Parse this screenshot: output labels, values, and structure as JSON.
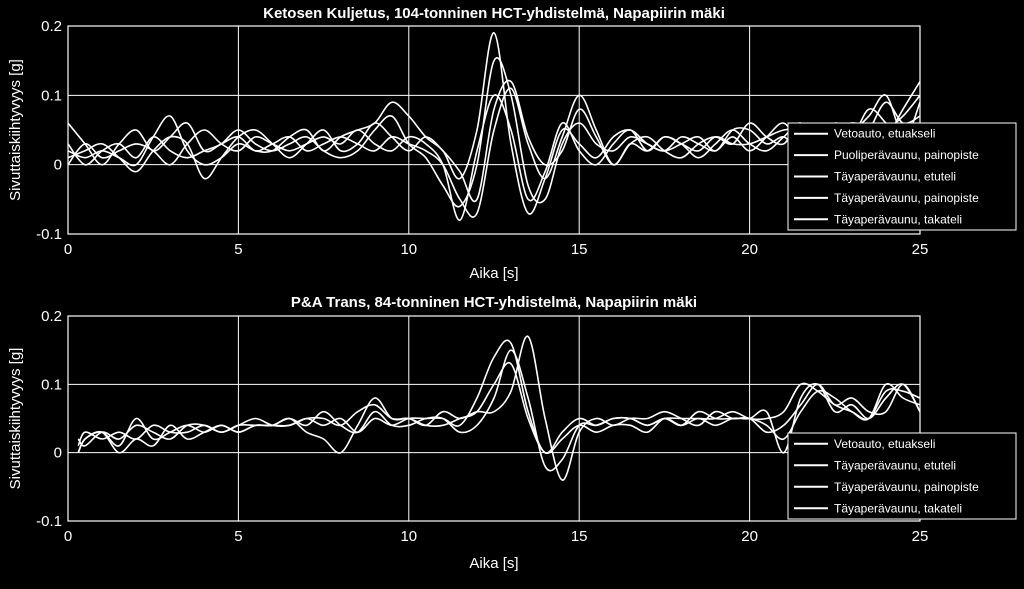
{
  "chart_data": [
    {
      "type": "line",
      "title": "Ketosen Kuljetus, 104-tonninen HCT-yhdistelmä, Napapiirin mäki",
      "xlabel": "Aika [s]",
      "ylabel": "Sivuttaiskiihtyvyys [g]",
      "xlim": [
        0,
        25
      ],
      "ylim": [
        -0.1,
        0.2
      ],
      "xticks": [
        "0",
        "5",
        "10",
        "15",
        "20",
        "25"
      ],
      "yticks": [
        "-0.1",
        "0",
        "0.1",
        "0.2"
      ],
      "grid": true,
      "legend_position": "right",
      "line_color": "#ffffff",
      "series": [
        {
          "name": "Vetoauto, etuakseli",
          "x": [
            0,
            0.5,
            1,
            1.5,
            2,
            2.5,
            3,
            3.5,
            4,
            4.5,
            5,
            5.5,
            6,
            6.5,
            7,
            7.5,
            8,
            8.5,
            9,
            9.5,
            10,
            10.5,
            11,
            11.5,
            12,
            12.5,
            13,
            13.5,
            14,
            14.5,
            15,
            15.5,
            16,
            16.5,
            17,
            17.5,
            18,
            18.5,
            19,
            19.5,
            20,
            20.5,
            21,
            21.5,
            22,
            22.5,
            23,
            23.5,
            24,
            24.5,
            25
          ],
          "y": [
            0.06,
            0.03,
            0.0,
            0.03,
            0.05,
            0.02,
            0.04,
            0.06,
            0.02,
            0.03,
            0.04,
            0.02,
            0.03,
            0.04,
            0.02,
            0.03,
            0.04,
            0.03,
            0.02,
            0.04,
            0.03,
            0.02,
            0.0,
            -0.05,
            -0.07,
            0.05,
            0.11,
            0.03,
            -0.02,
            0.04,
            0.1,
            0.05,
            0.0,
            0.03,
            0.02,
            0.04,
            0.03,
            0.02,
            0.04,
            0.03,
            0.03,
            0.04,
            0.05,
            0.05,
            0.04,
            0.06,
            0.05,
            0.07,
            0.1,
            0.04,
            0.05
          ]
        },
        {
          "name": "Puoliperävaunu, painopiste",
          "x": [
            0,
            0.5,
            1,
            1.5,
            2,
            2.5,
            3,
            3.5,
            4,
            4.5,
            5,
            5.5,
            6,
            6.5,
            7,
            7.5,
            8,
            8.5,
            9,
            9.5,
            10,
            10.5,
            11,
            11.5,
            12,
            12.5,
            13,
            13.5,
            14,
            14.5,
            15,
            15.5,
            16,
            16.5,
            17,
            17.5,
            18,
            18.5,
            19,
            19.5,
            20,
            20.5,
            21,
            21.5,
            22,
            22.5,
            23,
            23.5,
            24,
            24.5,
            25
          ],
          "y": [
            0.02,
            0.01,
            0.02,
            0.01,
            0.0,
            0.04,
            0.07,
            0.02,
            0.0,
            0.01,
            0.03,
            0.02,
            0.02,
            0.04,
            0.05,
            0.02,
            0.04,
            0.05,
            0.06,
            0.09,
            0.07,
            0.04,
            0.02,
            -0.02,
            0.05,
            0.19,
            0.03,
            -0.07,
            -0.02,
            0.05,
            0.03,
            0.01,
            0.04,
            0.05,
            0.03,
            0.02,
            0.03,
            0.04,
            0.02,
            0.05,
            0.05,
            0.03,
            0.04,
            0.02,
            0.05,
            0.04,
            0.06,
            0.05,
            0.04,
            0.08,
            0.12
          ]
        },
        {
          "name": "Täyaperävaunu, etuteli",
          "x": [
            0,
            0.5,
            1,
            1.5,
            2,
            2.5,
            3,
            3.5,
            4,
            4.5,
            5,
            5.5,
            6,
            6.5,
            7,
            7.5,
            8,
            8.5,
            9,
            9.5,
            10,
            10.5,
            11,
            11.5,
            12,
            12.5,
            13,
            13.5,
            14,
            14.5,
            15,
            15.5,
            16,
            16.5,
            17,
            17.5,
            18,
            18.5,
            19,
            19.5,
            20,
            20.5,
            21,
            21.5,
            22,
            22.5,
            23,
            23.5,
            24,
            24.5,
            25
          ],
          "y": [
            0.01,
            0.02,
            0.03,
            0.01,
            -0.01,
            0.02,
            0.04,
            0.03,
            -0.02,
            0.01,
            0.04,
            0.05,
            0.03,
            0.01,
            0.03,
            0.05,
            0.02,
            0.03,
            0.06,
            0.04,
            0.02,
            0.04,
            0.02,
            -0.01,
            -0.05,
            0.08,
            0.12,
            0.04,
            0.0,
            0.02,
            0.08,
            0.04,
            0.0,
            0.03,
            0.04,
            0.02,
            0.01,
            0.03,
            0.04,
            0.03,
            0.06,
            0.04,
            0.03,
            0.06,
            0.02,
            0.05,
            0.04,
            0.08,
            0.06,
            0.03,
            0.09
          ]
        },
        {
          "name": "Täyaperävaunu, painopiste",
          "x": [
            0,
            0.5,
            1,
            1.5,
            2,
            2.5,
            3,
            3.5,
            4,
            4.5,
            5,
            5.5,
            6,
            6.5,
            7,
            7.5,
            8,
            8.5,
            9,
            9.5,
            10,
            10.5,
            11,
            11.5,
            12,
            12.5,
            13,
            13.5,
            14,
            14.5,
            15,
            15.5,
            16,
            16.5,
            17,
            17.5,
            18,
            18.5,
            19,
            19.5,
            20,
            20.5,
            21,
            21.5,
            22,
            22.5,
            23,
            23.5,
            24,
            24.5,
            25
          ],
          "y": [
            0.03,
            0.0,
            0.02,
            0.03,
            0.01,
            0.04,
            0.02,
            0.01,
            0.02,
            0.03,
            0.05,
            0.03,
            0.02,
            0.03,
            0.04,
            0.02,
            0.01,
            0.02,
            0.05,
            0.07,
            0.03,
            0.01,
            -0.03,
            -0.06,
            0.0,
            0.15,
            0.1,
            -0.03,
            -0.05,
            0.03,
            0.06,
            0.03,
            0.02,
            0.04,
            0.03,
            0.02,
            0.04,
            0.03,
            0.02,
            0.04,
            0.02,
            0.04,
            0.06,
            0.03,
            0.04,
            0.05,
            0.03,
            0.05,
            0.09,
            0.06,
            0.07
          ]
        },
        {
          "name": "Täyaperävaunu, takateli",
          "x": [
            0,
            0.5,
            1,
            1.5,
            2,
            2.5,
            3,
            3.5,
            4,
            4.5,
            5,
            5.5,
            6,
            6.5,
            7,
            7.5,
            8,
            8.5,
            9,
            9.5,
            10,
            10.5,
            11,
            11.5,
            12,
            12.5,
            13,
            13.5,
            14,
            14.5,
            15,
            15.5,
            16,
            16.5,
            17,
            17.5,
            18,
            18.5,
            19,
            19.5,
            20,
            20.5,
            21,
            21.5,
            22,
            22.5,
            23,
            23.5,
            24,
            24.5,
            25
          ],
          "y": [
            0.0,
            0.03,
            0.01,
            0.02,
            0.03,
            0.02,
            0.0,
            0.03,
            0.05,
            0.03,
            0.02,
            0.04,
            0.03,
            0.02,
            0.03,
            0.04,
            0.03,
            0.05,
            0.03,
            0.02,
            0.04,
            0.03,
            0.0,
            -0.08,
            0.02,
            0.1,
            0.05,
            -0.05,
            -0.01,
            0.06,
            0.02,
            0.0,
            0.03,
            0.05,
            0.02,
            0.04,
            0.03,
            0.01,
            0.03,
            0.05,
            0.03,
            0.02,
            0.04,
            0.06,
            0.03,
            0.04,
            0.06,
            0.04,
            0.05,
            0.07,
            0.1
          ]
        }
      ]
    },
    {
      "type": "line",
      "title": "P&A Trans, 84-tonninen HCT-yhdistelmä, Napapiirin mäki",
      "xlabel": "Aika [s]",
      "ylabel": "Sivuttaiskiihtyvyys [g]",
      "xlim": [
        0,
        25
      ],
      "ylim": [
        -0.1,
        0.2
      ],
      "xticks": [
        "0",
        "5",
        "10",
        "15",
        "20",
        "25"
      ],
      "yticks": [
        "-0.1",
        "0",
        "0.1",
        "0.2"
      ],
      "grid": true,
      "legend_position": "right",
      "line_color": "#ffffff",
      "series": [
        {
          "name": "Vetoauto, etuakseli",
          "x": [
            0.3,
            0.5,
            1,
            1.5,
            2,
            2.5,
            3,
            3.5,
            4,
            4.5,
            5,
            5.5,
            6,
            6.5,
            7,
            7.5,
            8,
            8.5,
            9,
            9.5,
            10,
            10.5,
            11,
            11.5,
            12,
            12.5,
            13,
            13.5,
            14,
            14.5,
            15,
            15.5,
            16,
            16.5,
            17,
            17.5,
            18,
            18.5,
            19,
            19.5,
            20,
            20.5,
            21,
            21.5,
            22,
            22.5,
            23,
            23.5,
            24,
            24.5,
            25
          ],
          "y": [
            0.0,
            0.02,
            0.03,
            0.01,
            0.05,
            0.02,
            0.03,
            0.04,
            0.03,
            0.04,
            0.03,
            0.04,
            0.04,
            0.05,
            0.03,
            0.02,
            0.0,
            0.04,
            0.08,
            0.05,
            0.05,
            0.04,
            0.04,
            0.05,
            0.06,
            0.1,
            0.13,
            0.05,
            0.0,
            0.02,
            0.04,
            0.03,
            0.04,
            0.04,
            0.03,
            0.05,
            0.04,
            0.05,
            0.04,
            0.05,
            0.05,
            0.06,
            0.0,
            0.08,
            0.1,
            0.06,
            0.07,
            0.05,
            0.08,
            0.1,
            0.06
          ]
        },
        {
          "name": "Täyaperävaunu, etuteli",
          "x": [
            0.3,
            0.5,
            1,
            1.5,
            2,
            2.5,
            3,
            3.5,
            4,
            4.5,
            5,
            5.5,
            6,
            6.5,
            7,
            7.5,
            8,
            8.5,
            9,
            9.5,
            10,
            10.5,
            11,
            11.5,
            12,
            12.5,
            13,
            13.5,
            14,
            14.5,
            15,
            15.5,
            16,
            16.5,
            17,
            17.5,
            18,
            18.5,
            19,
            19.5,
            20,
            20.5,
            21,
            21.5,
            22,
            22.5,
            23,
            23.5,
            24,
            24.5,
            25
          ],
          "y": [
            0.01,
            0.03,
            0.02,
            0.03,
            0.02,
            0.04,
            0.03,
            0.03,
            0.04,
            0.03,
            0.04,
            0.04,
            0.04,
            0.04,
            0.05,
            0.04,
            0.05,
            0.03,
            0.05,
            0.04,
            0.05,
            0.05,
            0.05,
            0.04,
            0.08,
            0.14,
            0.16,
            0.06,
            0.0,
            0.03,
            0.05,
            0.04,
            0.05,
            0.05,
            0.04,
            0.05,
            0.05,
            0.05,
            0.05,
            0.06,
            0.05,
            0.05,
            0.06,
            0.1,
            0.09,
            0.07,
            0.06,
            0.05,
            0.09,
            0.09,
            0.08
          ]
        },
        {
          "name": "Täyaperävaunu, painopiste",
          "x": [
            0.3,
            0.5,
            1,
            1.5,
            2,
            2.5,
            3,
            3.5,
            4,
            4.5,
            5,
            5.5,
            6,
            6.5,
            7,
            7.5,
            8,
            8.5,
            9,
            9.5,
            10,
            10.5,
            11,
            11.5,
            12,
            12.5,
            13,
            13.5,
            14,
            14.5,
            15,
            15.5,
            16,
            16.5,
            17,
            17.5,
            18,
            18.5,
            19,
            19.5,
            20,
            20.5,
            21,
            21.5,
            22,
            22.5,
            23,
            23.5,
            24,
            24.5,
            25
          ],
          "y": [
            0.0,
            0.02,
            0.03,
            0.0,
            0.02,
            0.01,
            0.04,
            0.02,
            0.03,
            0.04,
            0.03,
            0.04,
            0.04,
            0.05,
            0.04,
            0.06,
            0.04,
            0.03,
            0.06,
            0.04,
            0.04,
            0.05,
            0.05,
            0.03,
            0.04,
            0.08,
            0.15,
            0.08,
            -0.02,
            -0.01,
            0.04,
            0.04,
            0.05,
            0.05,
            0.04,
            0.05,
            0.04,
            0.06,
            0.05,
            0.05,
            0.05,
            0.04,
            0.02,
            0.06,
            0.09,
            0.08,
            0.06,
            0.05,
            0.1,
            0.08,
            0.07
          ]
        },
        {
          "name": "Täyaperävaunu, takateli",
          "x": [
            0.3,
            0.5,
            1,
            1.5,
            2,
            2.5,
            3,
            3.5,
            4,
            4.5,
            5,
            5.5,
            6,
            6.5,
            7,
            7.5,
            8,
            8.5,
            9,
            9.5,
            10,
            10.5,
            11,
            11.5,
            12,
            12.5,
            13,
            13.5,
            14,
            14.5,
            15,
            15.5,
            16,
            16.5,
            17,
            17.5,
            18,
            18.5,
            19,
            19.5,
            20,
            20.5,
            21,
            21.5,
            22,
            22.5,
            23,
            23.5,
            24,
            24.5,
            25
          ],
          "y": [
            0.02,
            0.01,
            0.03,
            0.02,
            0.04,
            0.03,
            0.02,
            0.04,
            0.04,
            0.03,
            0.04,
            0.05,
            0.04,
            0.04,
            0.05,
            0.05,
            0.04,
            0.06,
            0.07,
            0.05,
            0.05,
            0.04,
            0.06,
            0.05,
            0.06,
            0.06,
            0.09,
            0.17,
            0.05,
            -0.04,
            0.03,
            0.05,
            0.04,
            0.05,
            0.05,
            0.06,
            0.05,
            0.04,
            0.06,
            0.05,
            0.05,
            0.03,
            0.04,
            0.07,
            0.1,
            0.07,
            0.08,
            0.06,
            0.06,
            0.1,
            0.06
          ]
        }
      ]
    }
  ]
}
